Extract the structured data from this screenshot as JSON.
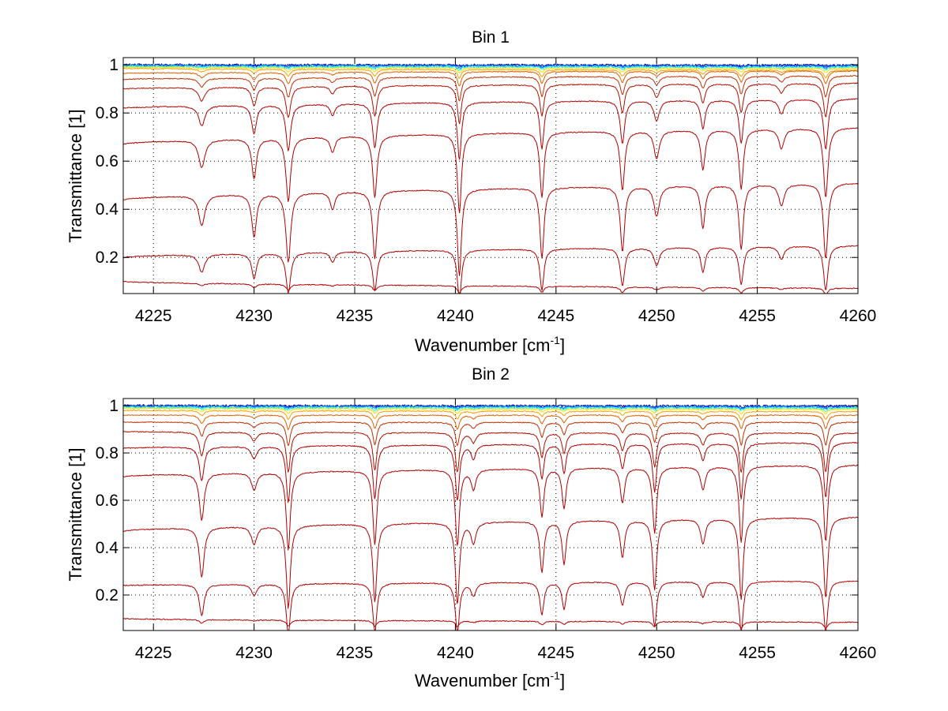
{
  "chart_data": [
    {
      "type": "line",
      "title": "Bin 1",
      "xlabel": "Wavenumber [cm",
      "xlabel_sup": "-1",
      "xlabel_end": "]",
      "ylabel": "Transmittance [1]",
      "xlim": [
        4223.5,
        4260
      ],
      "ylim": [
        0.05,
        1.03
      ],
      "xticks": [
        4225,
        4230,
        4235,
        4240,
        4245,
        4250,
        4255,
        4260
      ],
      "xtick_labels": [
        "4225",
        "4230",
        "4235",
        "4240",
        "4245",
        "4250",
        "4255",
        "4260"
      ],
      "yticks": [
        0.2,
        0.4,
        0.6,
        0.8,
        1
      ],
      "ytick_labels": [
        "0.2",
        "0.4",
        "0.6",
        "0.8",
        "1"
      ],
      "grid": true,
      "absorption_lines": [
        {
          "x": 4227.4,
          "depth": 0.35,
          "width": 0.18
        },
        {
          "x": 4230.0,
          "depth": 0.5,
          "width": 0.14
        },
        {
          "x": 4231.7,
          "depth": 0.8,
          "width": 0.14
        },
        {
          "x": 4233.9,
          "depth": 0.2,
          "width": 0.14
        },
        {
          "x": 4236.0,
          "depth": 0.78,
          "width": 0.13
        },
        {
          "x": 4240.2,
          "depth": 1.0,
          "width": 0.12
        },
        {
          "x": 4244.3,
          "depth": 0.82,
          "width": 0.12
        },
        {
          "x": 4248.3,
          "depth": 0.75,
          "width": 0.13
        },
        {
          "x": 4250.0,
          "depth": 0.35,
          "width": 0.16
        },
        {
          "x": 4252.3,
          "depth": 0.5,
          "width": 0.13
        },
        {
          "x": 4254.2,
          "depth": 0.75,
          "width": 0.13
        },
        {
          "x": 4256.2,
          "depth": 0.25,
          "width": 0.16
        },
        {
          "x": 4258.4,
          "depth": 0.88,
          "width": 0.13
        }
      ],
      "series": [
        {
          "name": "s1",
          "color": "#0000a0",
          "start": 1.0,
          "end": 0.998,
          "depth": 0.003
        },
        {
          "name": "s2",
          "color": "#0040ff",
          "start": 0.998,
          "end": 0.996,
          "depth": 0.005
        },
        {
          "name": "s3",
          "color": "#00a0ff",
          "start": 0.996,
          "end": 0.993,
          "depth": 0.008
        },
        {
          "name": "s4",
          "color": "#40ffc0",
          "start": 0.994,
          "end": 0.99,
          "depth": 0.012
        },
        {
          "name": "s5",
          "color": "#ffe000",
          "start": 0.99,
          "end": 0.985,
          "depth": 0.02
        },
        {
          "name": "s6",
          "color": "#ffa000",
          "start": 0.985,
          "end": 0.978,
          "depth": 0.035
        },
        {
          "name": "s7",
          "color": "#e06000",
          "start": 0.965,
          "end": 0.975,
          "depth": 0.06
        },
        {
          "name": "s8",
          "color": "#c03000",
          "start": 0.94,
          "end": 0.955,
          "depth": 0.1
        },
        {
          "name": "s9",
          "color": "#b01000",
          "start": 0.9,
          "end": 0.925,
          "depth": 0.16
        },
        {
          "name": "s10",
          "color": "#b00000",
          "start": 0.82,
          "end": 0.86,
          "depth": 0.24
        },
        {
          "name": "s11",
          "color": "#b00000",
          "start": 0.67,
          "end": 0.74,
          "depth": 0.33
        },
        {
          "name": "s12",
          "color": "#b00000",
          "start": 0.44,
          "end": 0.51,
          "depth": 0.36
        },
        {
          "name": "s13",
          "color": "#b00000",
          "start": 0.2,
          "end": 0.25,
          "depth": 0.21
        },
        {
          "name": "s14",
          "color": "#b00000",
          "start": 0.1,
          "end": 0.072,
          "depth": 0.03
        }
      ]
    },
    {
      "type": "line",
      "title": "Bin 2",
      "xlabel": "Wavenumber [cm",
      "xlabel_sup": "-1",
      "xlabel_end": "]",
      "ylabel": "Transmittance [1]",
      "xlim": [
        4223.5,
        4260
      ],
      "ylim": [
        0.05,
        1.03
      ],
      "xticks": [
        4225,
        4230,
        4235,
        4240,
        4245,
        4250,
        4255,
        4260
      ],
      "xtick_labels": [
        "4225",
        "4230",
        "4235",
        "4240",
        "4245",
        "4250",
        "4255",
        "4260"
      ],
      "yticks": [
        0.2,
        0.4,
        0.6,
        0.8,
        1
      ],
      "ytick_labels": [
        "0.2",
        "0.4",
        "0.6",
        "0.8",
        "1"
      ],
      "grid": true,
      "absorption_lines": [
        {
          "x": 4227.4,
          "depth": 0.6,
          "width": 0.14
        },
        {
          "x": 4230.0,
          "depth": 0.22,
          "width": 0.16
        },
        {
          "x": 4231.7,
          "depth": 1.0,
          "width": 0.12
        },
        {
          "x": 4236.0,
          "depth": 0.95,
          "width": 0.12
        },
        {
          "x": 4240.1,
          "depth": 0.98,
          "width": 0.12
        },
        {
          "x": 4240.9,
          "depth": 0.25,
          "width": 0.14
        },
        {
          "x": 4244.3,
          "depth": 0.62,
          "width": 0.12
        },
        {
          "x": 4245.4,
          "depth": 0.52,
          "width": 0.12
        },
        {
          "x": 4248.3,
          "depth": 0.45,
          "width": 0.13
        },
        {
          "x": 4249.9,
          "depth": 0.85,
          "width": 0.12
        },
        {
          "x": 4252.3,
          "depth": 0.3,
          "width": 0.14
        },
        {
          "x": 4254.2,
          "depth": 0.98,
          "width": 0.12
        },
        {
          "x": 4258.4,
          "depth": 0.98,
          "width": 0.12
        }
      ],
      "series": [
        {
          "name": "s1",
          "color": "#0000a0",
          "start": 1.0,
          "end": 0.998,
          "depth": 0.003
        },
        {
          "name": "s2",
          "color": "#0040ff",
          "start": 0.998,
          "end": 0.996,
          "depth": 0.005
        },
        {
          "name": "s3",
          "color": "#00a0ff",
          "start": 0.996,
          "end": 0.993,
          "depth": 0.008
        },
        {
          "name": "s4",
          "color": "#40ffc0",
          "start": 0.993,
          "end": 0.99,
          "depth": 0.012
        },
        {
          "name": "s5",
          "color": "#ffe000",
          "start": 0.988,
          "end": 0.985,
          "depth": 0.02
        },
        {
          "name": "s6",
          "color": "#ffa000",
          "start": 0.98,
          "end": 0.975,
          "depth": 0.035
        },
        {
          "name": "s7",
          "color": "#e06000",
          "start": 0.96,
          "end": 0.96,
          "depth": 0.06
        },
        {
          "name": "s8",
          "color": "#c03000",
          "start": 0.93,
          "end": 0.93,
          "depth": 0.1
        },
        {
          "name": "s9",
          "color": "#b01000",
          "start": 0.89,
          "end": 0.885,
          "depth": 0.17
        },
        {
          "name": "s10",
          "color": "#b00000",
          "start": 0.82,
          "end": 0.845,
          "depth": 0.24
        },
        {
          "name": "s11",
          "color": "#b00000",
          "start": 0.7,
          "end": 0.75,
          "depth": 0.33
        },
        {
          "name": "s12",
          "color": "#b00000",
          "start": 0.47,
          "end": 0.53,
          "depth": 0.35
        },
        {
          "name": "s13",
          "color": "#b00000",
          "start": 0.24,
          "end": 0.26,
          "depth": 0.22
        },
        {
          "name": "s14",
          "color": "#b00000",
          "start": 0.1,
          "end": 0.085,
          "depth": 0.025
        }
      ]
    }
  ]
}
